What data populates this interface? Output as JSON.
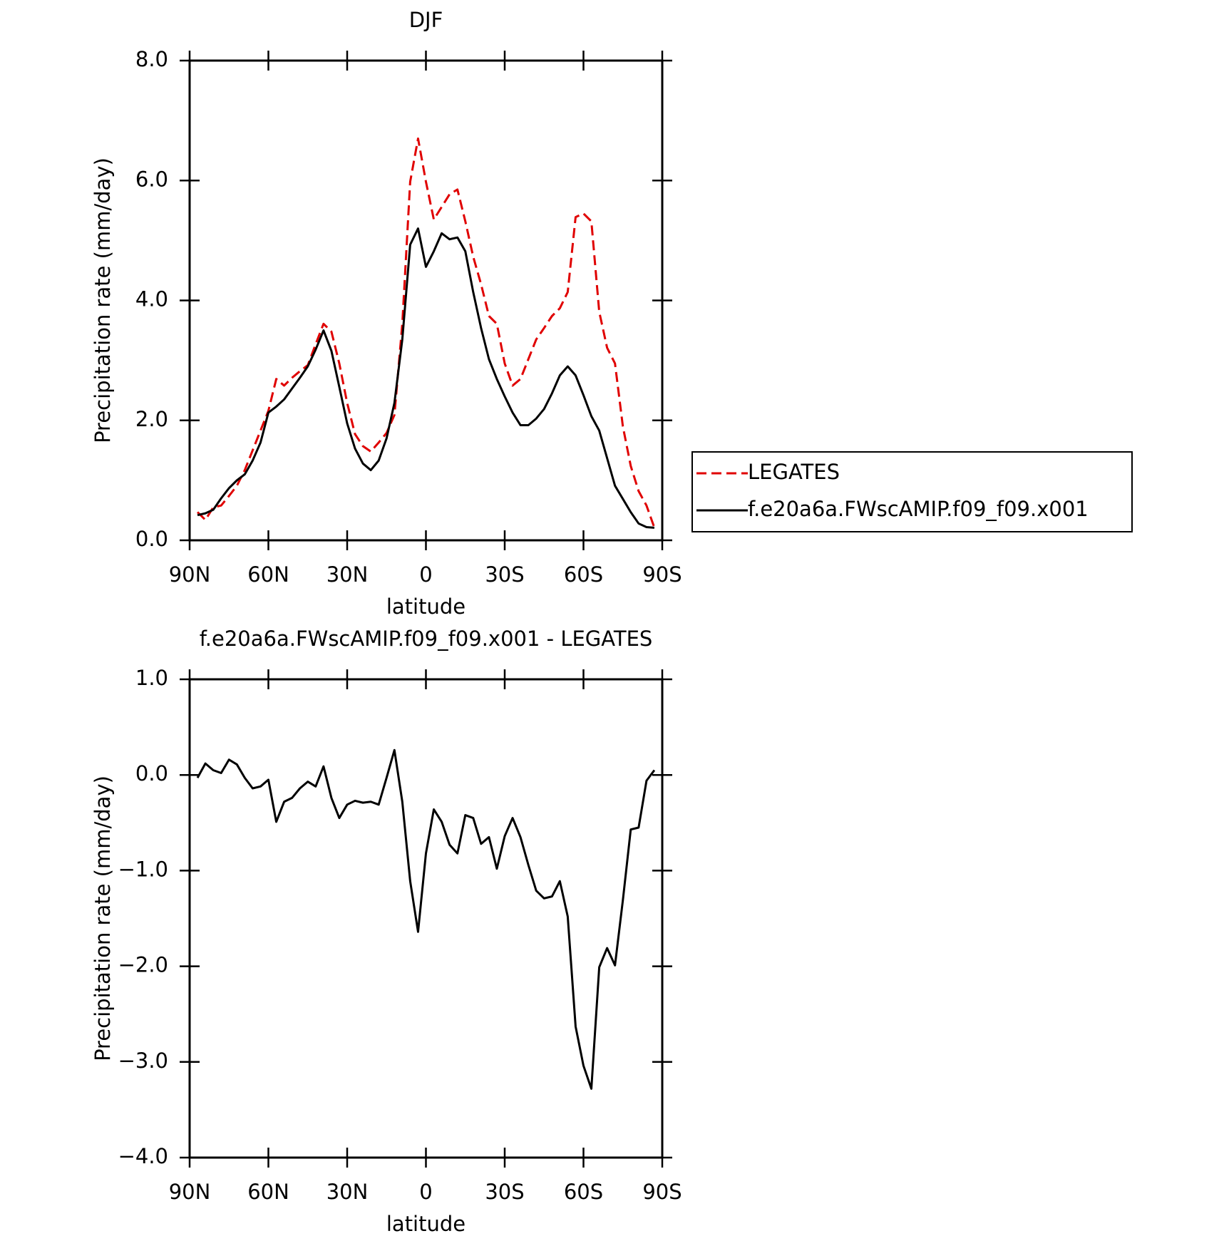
{
  "chart_data": [
    {
      "type": "line",
      "title": "DJF",
      "xlabel": "latitude",
      "ylabel": "Precipitation rate (mm/day)",
      "x": [
        87,
        84,
        81,
        78,
        75,
        72,
        69,
        66,
        63,
        60,
        57,
        54,
        51,
        48,
        45,
        42,
        39,
        36,
        33,
        30,
        27,
        24,
        21,
        18,
        15,
        12,
        9,
        6,
        3,
        0,
        -3,
        -6,
        -9,
        -12,
        -15,
        -18,
        -21,
        -24,
        -27,
        -30,
        -33,
        -36,
        -39,
        -42,
        -45,
        -48,
        -51,
        -54,
        -57,
        -60,
        -63,
        -66,
        -69,
        -72,
        -75,
        -78,
        -81,
        -84,
        -87
      ],
      "xlim": [
        90,
        -90
      ],
      "xticks": [
        {
          "value": 90,
          "label": "90N"
        },
        {
          "value": 60,
          "label": "60N"
        },
        {
          "value": 30,
          "label": "30N"
        },
        0,
        {
          "value": -30,
          "label": "30S"
        },
        {
          "value": -60,
          "label": "60S"
        },
        {
          "value": -90,
          "label": "90S"
        }
      ],
      "ylim": [
        0,
        8
      ],
      "yticks": [
        {
          "value": 0,
          "label": "0.0"
        },
        {
          "value": 2,
          "label": "2.0"
        },
        {
          "value": 4,
          "label": "4.0"
        },
        {
          "value": 6,
          "label": "6.0"
        },
        {
          "value": 8,
          "label": "8.0"
        }
      ],
      "legend": "right",
      "series": [
        {
          "name": "LEGATES",
          "color": "#e00000",
          "dash": true,
          "values": [
            0.47,
            0.34,
            0.55,
            0.58,
            0.74,
            0.91,
            1.17,
            1.5,
            1.83,
            2.16,
            2.69,
            2.58,
            2.71,
            2.82,
            2.92,
            3.27,
            3.61,
            3.48,
            2.95,
            2.29,
            1.77,
            1.57,
            1.48,
            1.63,
            1.79,
            2.09,
            3.61,
            5.98,
            6.7,
            5.98,
            5.35,
            5.56,
            5.77,
            5.85,
            5.32,
            4.73,
            4.27,
            3.74,
            3.61,
            2.95,
            2.58,
            2.69,
            3.02,
            3.35,
            3.54,
            3.74,
            3.87,
            4.14,
            5.39,
            5.45,
            5.32,
            3.81,
            3.21,
            2.95,
            1.9,
            1.24,
            0.82,
            0.58,
            0.21
          ]
        },
        {
          "name": "f.e20a6a.FWscAMIP.f09_f09.x001",
          "color": "#000000",
          "dash": false,
          "values": [
            0.42,
            0.45,
            0.51,
            0.7,
            0.87,
            1.0,
            1.1,
            1.33,
            1.63,
            2.13,
            2.23,
            2.35,
            2.53,
            2.71,
            2.9,
            3.18,
            3.5,
            3.16,
            2.56,
            1.95,
            1.53,
            1.28,
            1.17,
            1.33,
            1.7,
            2.29,
            3.35,
            4.93,
            5.2,
            4.56,
            4.82,
            5.12,
            5.02,
            5.05,
            4.82,
            4.14,
            3.54,
            3.02,
            2.69,
            2.4,
            2.13,
            1.92,
            1.92,
            2.03,
            2.19,
            2.45,
            2.75,
            2.9,
            2.75,
            2.42,
            2.07,
            1.83,
            1.37,
            0.91,
            0.69,
            0.47,
            0.28,
            0.22,
            0.21
          ]
        }
      ]
    },
    {
      "type": "line",
      "title": "f.e20a6a.FWscAMIP.f09_f09.x001 - LEGATES",
      "xlabel": "latitude",
      "ylabel": "Precipitation rate (mm/day)",
      "x": [
        87,
        84,
        81,
        78,
        75,
        72,
        69,
        66,
        63,
        60,
        57,
        54,
        51,
        48,
        45,
        42,
        39,
        36,
        33,
        30,
        27,
        24,
        21,
        18,
        15,
        12,
        9,
        6,
        3,
        0,
        -3,
        -6,
        -9,
        -12,
        -15,
        -18,
        -21,
        -24,
        -27,
        -30,
        -33,
        -36,
        -39,
        -42,
        -45,
        -48,
        -51,
        -54,
        -57,
        -60,
        -63,
        -66,
        -69,
        -72,
        -75,
        -78,
        -81,
        -84,
        -87
      ],
      "xlim": [
        90,
        -90
      ],
      "xticks": [
        {
          "value": 90,
          "label": "90N"
        },
        {
          "value": 60,
          "label": "60N"
        },
        {
          "value": 30,
          "label": "30N"
        },
        0,
        {
          "value": -30,
          "label": "30S"
        },
        {
          "value": -60,
          "label": "60S"
        },
        {
          "value": -90,
          "label": "90S"
        }
      ],
      "ylim": [
        -4,
        1
      ],
      "yticks": [
        {
          "value": -4,
          "label": "−4.0"
        },
        {
          "value": -3,
          "label": "−3.0"
        },
        {
          "value": -2,
          "label": "−2.0"
        },
        {
          "value": -1,
          "label": "−1.0"
        },
        {
          "value": 0,
          "label": "0.0"
        },
        {
          "value": 1,
          "label": "1.0"
        }
      ],
      "series": [
        {
          "color": "#000000",
          "dash": false,
          "values": [
            -0.03,
            0.12,
            0.05,
            0.02,
            0.16,
            0.11,
            -0.03,
            -0.14,
            -0.12,
            -0.05,
            -0.49,
            -0.28,
            -0.24,
            -0.14,
            -0.07,
            -0.12,
            0.09,
            -0.24,
            -0.45,
            -0.31,
            -0.27,
            -0.29,
            -0.28,
            -0.31,
            -0.03,
            0.26,
            -0.28,
            -1.11,
            -1.64,
            -0.82,
            -0.36,
            -0.49,
            -0.73,
            -0.82,
            -0.42,
            -0.45,
            -0.72,
            -0.65,
            -0.98,
            -0.64,
            -0.45,
            -0.65,
            -0.94,
            -1.21,
            -1.29,
            -1.27,
            -1.11,
            -1.48,
            -2.63,
            -3.04,
            -3.28,
            -2.01,
            -1.81,
            -1.99,
            -1.31,
            -0.57,
            -0.55,
            -0.06,
            0.05
          ]
        }
      ]
    }
  ]
}
